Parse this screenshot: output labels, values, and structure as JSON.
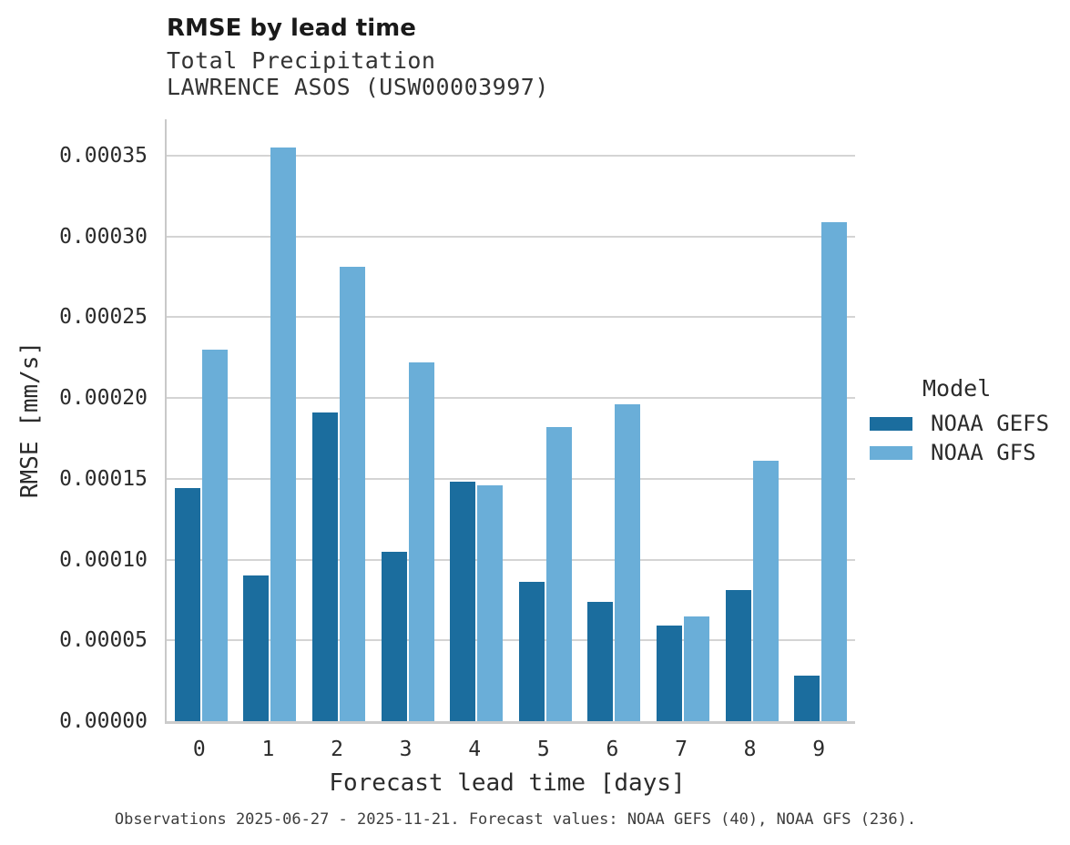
{
  "header": {
    "title": "RMSE by lead time",
    "subtitle_line1": "Total Precipitation",
    "subtitle_line2": "LAWRENCE ASOS (USW00003997)"
  },
  "caption": "Observations 2025-06-27 - 2025-11-21. Forecast values: NOAA GEFS (40), NOAA GFS (236).",
  "colors": {
    "gefs_bar": "#1b6d9e",
    "gfs_bar": "#6aaed8",
    "gridline": "#d4d4d4",
    "spine": "#c9c9c9"
  },
  "chart_data": {
    "type": "bar",
    "title": "RMSE by lead time",
    "subtitle": [
      "Total Precipitation",
      "LAWRENCE ASOS (USW00003997)"
    ],
    "categories": [
      "0",
      "1",
      "2",
      "3",
      "4",
      "5",
      "6",
      "7",
      "8",
      "9"
    ],
    "series": [
      {
        "name": "NOAA GEFS",
        "color": "#1b6d9e",
        "values": [
          0.000144,
          9e-05,
          0.000191,
          0.000105,
          0.000148,
          8.6e-05,
          7.4e-05,
          5.9e-05,
          8.1e-05,
          2.8e-05
        ]
      },
      {
        "name": "NOAA GFS",
        "color": "#6aaed8",
        "values": [
          0.00023,
          0.000355,
          0.000281,
          0.000222,
          0.000146,
          0.000182,
          0.000196,
          6.5e-05,
          0.000161,
          0.000309
        ]
      }
    ],
    "xlabel": "Forecast lead time [days]",
    "ylabel": "RMSE [mm/s]",
    "ylim": [
      0,
      0.0003725
    ],
    "yticks": [
      0.0,
      5e-05,
      0.0001,
      0.00015,
      0.0002,
      0.00025,
      0.0003,
      0.00035
    ],
    "ytick_labels": [
      "0.00000",
      "0.00005",
      "0.00010",
      "0.00015",
      "0.00020",
      "0.00025",
      "0.00030",
      "0.00035"
    ],
    "grid": "horizontal",
    "legend_title": "Model",
    "legend_position": "right"
  }
}
